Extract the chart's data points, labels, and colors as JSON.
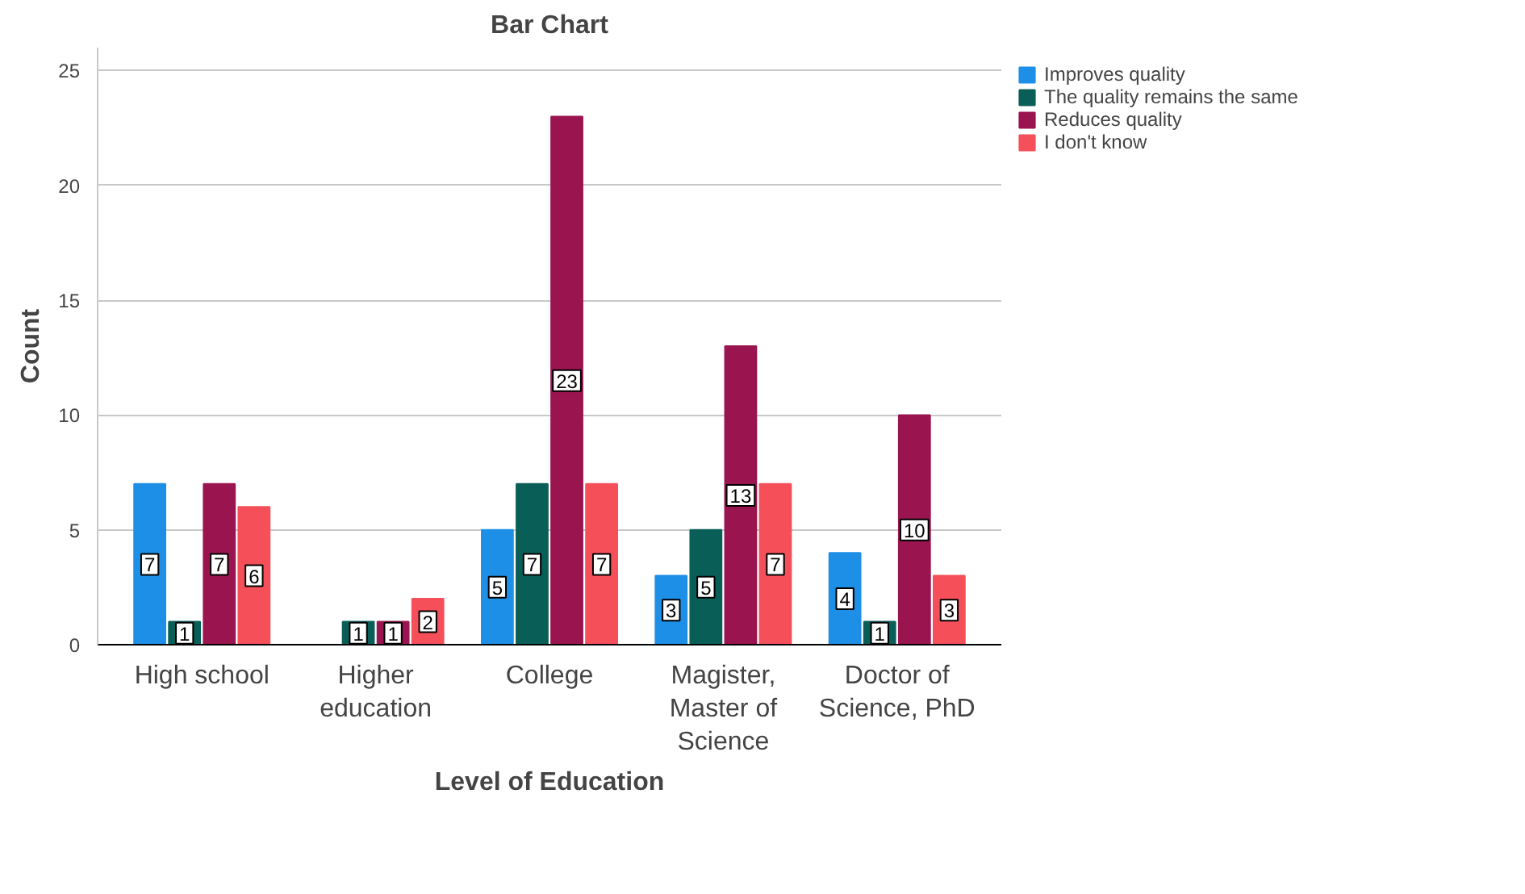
{
  "chart_data": {
    "type": "bar",
    "title": "Bar Chart",
    "xlabel": "Level of Education",
    "ylabel": "Count",
    "categories": [
      "High school",
      "Higher education",
      "College",
      "Magister, Master of Science",
      "Doctor of Science, PhD"
    ],
    "series": [
      {
        "name": "Improves quality",
        "color": "#1e8fe6",
        "values": [
          7,
          0,
          5,
          3,
          4
        ],
        "value_labels": [
          "7",
          null,
          "5",
          "3",
          "4"
        ]
      },
      {
        "name": "The quality remains the same",
        "color": "#0a5e58",
        "values": [
          1,
          1,
          7,
          5,
          1
        ],
        "value_labels": [
          "1",
          "1",
          "7",
          "5",
          "1"
        ]
      },
      {
        "name": "Reduces quality",
        "color": "#9a1550",
        "values": [
          7,
          1,
          23,
          13,
          10
        ],
        "value_labels": [
          "7",
          "1",
          "23",
          "13",
          "10"
        ]
      },
      {
        "name": "I don't know",
        "color": "#f5505a",
        "values": [
          6,
          2,
          7,
          7,
          3
        ],
        "value_labels": [
          "6",
          "2",
          "7",
          "7",
          "3"
        ]
      }
    ],
    "ylim": [
      0,
      26
    ],
    "yticks": [
      0,
      5,
      10,
      15,
      20,
      25
    ],
    "grid": "y",
    "legend": "right"
  }
}
